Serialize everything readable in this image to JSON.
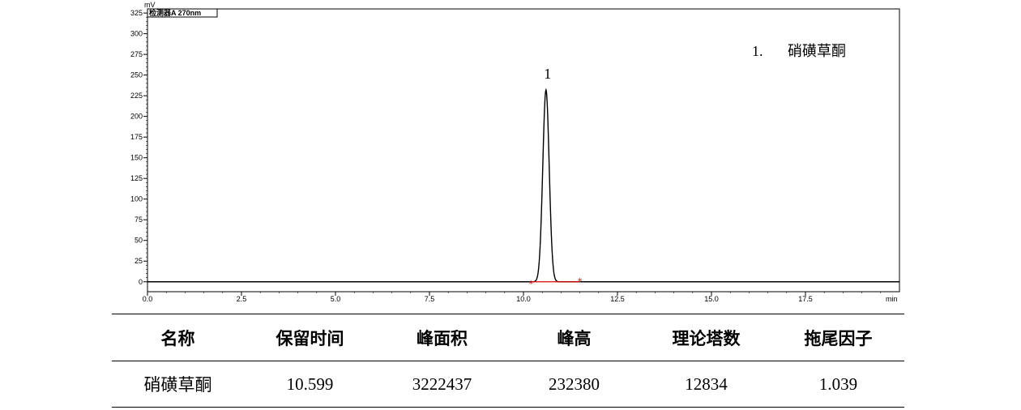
{
  "chart_data": {
    "type": "line",
    "y_unit": "mV",
    "x_unit": "min",
    "detector_label": "检测器A 270nm",
    "xlim": [
      0,
      20
    ],
    "ylim": [
      -12,
      330
    ],
    "x_ticks": [
      "0.0",
      "2.5",
      "5.0",
      "7.5",
      "10.0",
      "12.5",
      "15.0",
      "17.5"
    ],
    "y_ticks": [
      "0",
      "25",
      "50",
      "75",
      "100",
      "125",
      "150",
      "175",
      "200",
      "225",
      "250",
      "275",
      "300",
      "325"
    ],
    "peaks": [
      {
        "label": "1",
        "retention_time": 10.599,
        "height_mV": 232,
        "start": 10.2,
        "end": 11.5
      }
    ],
    "legend": [
      {
        "number": "1.",
        "name": "硝磺草酮"
      }
    ],
    "colors": {
      "trace": "#000000",
      "baseline": "#e00000"
    }
  },
  "table": {
    "headers": [
      "名称",
      "保留时间",
      "峰面积",
      "峰高",
      "理论塔数",
      "拖尾因子"
    ],
    "rows": [
      [
        "硝磺草酮",
        "10.599",
        "3222437",
        "232380",
        "12834",
        "1.039"
      ]
    ]
  }
}
